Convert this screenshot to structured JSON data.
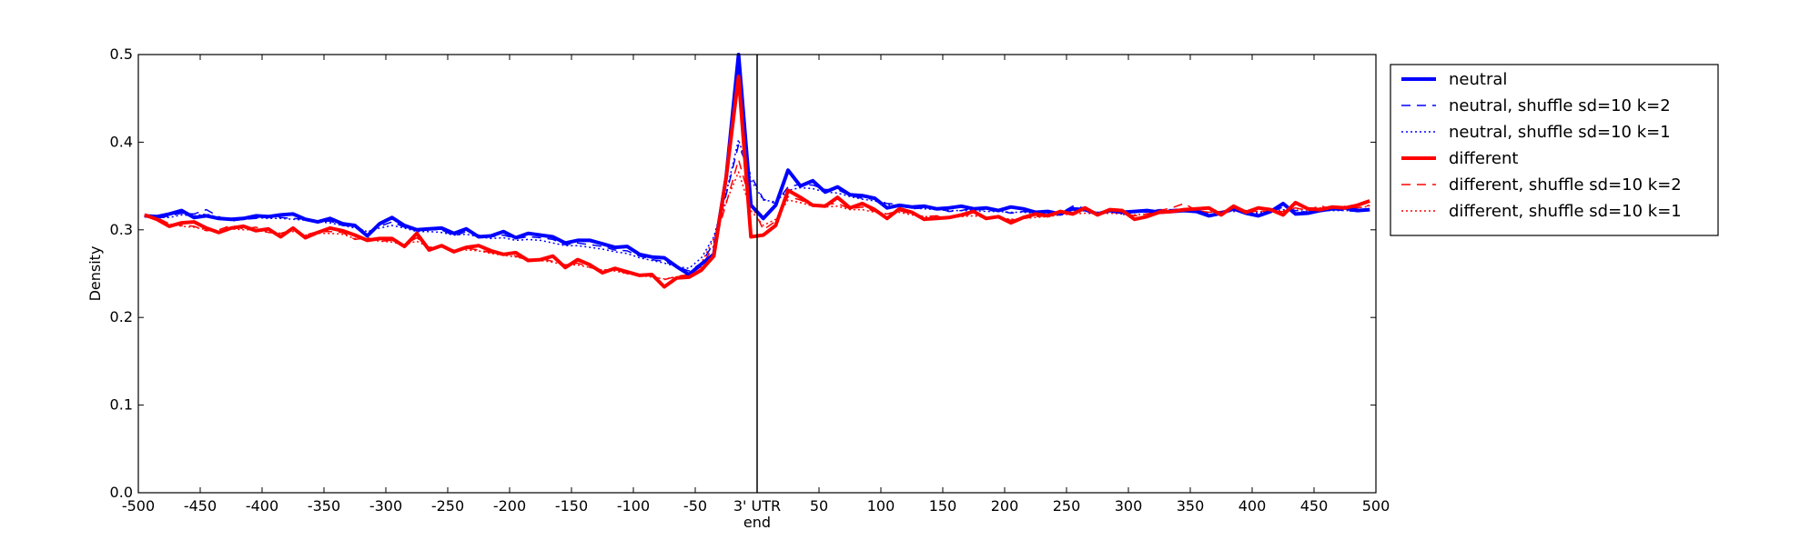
{
  "chart_data": {
    "type": "line",
    "title": "",
    "xlabel": "end",
    "ylabel": "Density",
    "xlim": [
      -500,
      500
    ],
    "ylim": [
      0,
      0.5
    ],
    "grid": false,
    "legend_position": "outside-top-right",
    "vline_x": 0,
    "x_ticks": [
      -500,
      -450,
      -400,
      -350,
      -300,
      -250,
      -200,
      -150,
      -100,
      -50,
      0,
      50,
      100,
      150,
      200,
      250,
      300,
      350,
      400,
      450,
      500
    ],
    "x_tick_labels": [
      "-500",
      "-450",
      "-400",
      "-350",
      "-300",
      "-250",
      "-200",
      "-150",
      "-100",
      "-50",
      "3' UTR",
      "50",
      "100",
      "150",
      "200",
      "250",
      "300",
      "350",
      "400",
      "450",
      "500"
    ],
    "y_ticks": [
      0.0,
      0.1,
      0.2,
      0.3,
      0.4,
      0.5
    ],
    "y_tick_labels": [
      "0.0",
      "0.1",
      "0.2",
      "0.3",
      "0.4",
      "0.5"
    ],
    "x": [
      -495,
      -485,
      -475,
      -465,
      -455,
      -445,
      -435,
      -425,
      -415,
      -405,
      -395,
      -385,
      -375,
      -365,
      -355,
      -345,
      -335,
      -325,
      -315,
      -305,
      -295,
      -285,
      -275,
      -265,
      -255,
      -245,
      -235,
      -225,
      -215,
      -205,
      -195,
      -185,
      -175,
      -165,
      -155,
      -145,
      -135,
      -125,
      -115,
      -105,
      -95,
      -85,
      -75,
      -65,
      -55,
      -45,
      -35,
      -25,
      -15,
      -5,
      5,
      15,
      25,
      35,
      45,
      55,
      65,
      75,
      85,
      95,
      105,
      115,
      125,
      135,
      145,
      155,
      165,
      175,
      185,
      195,
      205,
      215,
      225,
      235,
      245,
      255,
      265,
      275,
      285,
      295,
      305,
      315,
      325,
      335,
      345,
      355,
      365,
      375,
      385,
      395,
      405,
      415,
      425,
      435,
      445,
      455,
      465,
      475,
      485,
      495
    ],
    "series": [
      {
        "name": "neutral",
        "color": "#0000ff",
        "style": "solid",
        "values": [
          0.316,
          0.315,
          0.318,
          0.322,
          0.314,
          0.316,
          0.313,
          0.312,
          0.313,
          0.316,
          0.315,
          0.317,
          0.318,
          0.312,
          0.309,
          0.313,
          0.307,
          0.305,
          0.293,
          0.307,
          0.314,
          0.305,
          0.3,
          0.301,
          0.302,
          0.296,
          0.301,
          0.292,
          0.293,
          0.298,
          0.291,
          0.296,
          0.294,
          0.292,
          0.285,
          0.288,
          0.288,
          0.284,
          0.28,
          0.281,
          0.272,
          0.269,
          0.268,
          0.258,
          0.249,
          0.261,
          0.272,
          0.36,
          0.5,
          0.328,
          0.313,
          0.328,
          0.368,
          0.35,
          0.356,
          0.343,
          0.349,
          0.34,
          0.339,
          0.336,
          0.325,
          0.328,
          0.326,
          0.327,
          0.324,
          0.325,
          0.327,
          0.324,
          0.325,
          0.322,
          0.326,
          0.324,
          0.32,
          0.321,
          0.318,
          0.324,
          0.323,
          0.318,
          0.322,
          0.32,
          0.321,
          0.322,
          0.32,
          0.321,
          0.322,
          0.321,
          0.316,
          0.319,
          0.324,
          0.319,
          0.316,
          0.321,
          0.33,
          0.318,
          0.319,
          0.322,
          0.324,
          0.325,
          0.322,
          0.323
        ]
      },
      {
        "name": "neutral, shuffle sd=10 k=2",
        "color": "#0000ff",
        "style": "dashed",
        "values": [
          0.317,
          0.313,
          0.316,
          0.319,
          0.318,
          0.323,
          0.315,
          0.31,
          0.312,
          0.313,
          0.316,
          0.314,
          0.313,
          0.312,
          0.31,
          0.31,
          0.305,
          0.304,
          0.297,
          0.304,
          0.309,
          0.303,
          0.299,
          0.3,
          0.3,
          0.293,
          0.298,
          0.294,
          0.292,
          0.294,
          0.29,
          0.292,
          0.291,
          0.289,
          0.283,
          0.285,
          0.283,
          0.281,
          0.277,
          0.276,
          0.27,
          0.266,
          0.264,
          0.258,
          0.253,
          0.262,
          0.285,
          0.34,
          0.397,
          0.362,
          0.335,
          0.33,
          0.349,
          0.352,
          0.351,
          0.346,
          0.346,
          0.339,
          0.336,
          0.335,
          0.33,
          0.329,
          0.324,
          0.325,
          0.325,
          0.321,
          0.322,
          0.325,
          0.322,
          0.322,
          0.319,
          0.321,
          0.32,
          0.318,
          0.319,
          0.327,
          0.325,
          0.318,
          0.323,
          0.317,
          0.321,
          0.32,
          0.323,
          0.323,
          0.324,
          0.323,
          0.318,
          0.32,
          0.323,
          0.322,
          0.315,
          0.32,
          0.326,
          0.322,
          0.32,
          0.322,
          0.323,
          0.322,
          0.321,
          0.322
        ]
      },
      {
        "name": "neutral, shuffle sd=10 k=1",
        "color": "#0000ff",
        "style": "dotted",
        "values": [
          0.315,
          0.314,
          0.314,
          0.317,
          0.316,
          0.318,
          0.314,
          0.311,
          0.312,
          0.314,
          0.313,
          0.313,
          0.312,
          0.311,
          0.309,
          0.308,
          0.305,
          0.302,
          0.298,
          0.302,
          0.305,
          0.302,
          0.298,
          0.298,
          0.297,
          0.294,
          0.295,
          0.292,
          0.29,
          0.291,
          0.288,
          0.289,
          0.288,
          0.285,
          0.282,
          0.282,
          0.28,
          0.278,
          0.275,
          0.273,
          0.268,
          0.265,
          0.262,
          0.258,
          0.256,
          0.268,
          0.292,
          0.342,
          0.403,
          0.357,
          0.334,
          0.332,
          0.345,
          0.348,
          0.347,
          0.343,
          0.342,
          0.338,
          0.335,
          0.333,
          0.329,
          0.327,
          0.325,
          0.324,
          0.323,
          0.322,
          0.322,
          0.322,
          0.321,
          0.321,
          0.32,
          0.32,
          0.319,
          0.319,
          0.32,
          0.322,
          0.322,
          0.32,
          0.321,
          0.32,
          0.32,
          0.321,
          0.321,
          0.322,
          0.322,
          0.321,
          0.32,
          0.321,
          0.321,
          0.321,
          0.319,
          0.321,
          0.323,
          0.322,
          0.321,
          0.322,
          0.322,
          0.322,
          0.322,
          0.322
        ]
      },
      {
        "name": "different",
        "color": "#ff0000",
        "style": "solid",
        "values": [
          0.317,
          0.312,
          0.304,
          0.308,
          0.309,
          0.302,
          0.297,
          0.302,
          0.304,
          0.299,
          0.301,
          0.292,
          0.302,
          0.291,
          0.297,
          0.302,
          0.299,
          0.294,
          0.288,
          0.29,
          0.29,
          0.281,
          0.296,
          0.277,
          0.282,
          0.275,
          0.28,
          0.282,
          0.276,
          0.272,
          0.274,
          0.265,
          0.266,
          0.27,
          0.257,
          0.266,
          0.26,
          0.251,
          0.256,
          0.252,
          0.248,
          0.249,
          0.235,
          0.245,
          0.246,
          0.254,
          0.27,
          0.36,
          0.475,
          0.292,
          0.294,
          0.305,
          0.345,
          0.337,
          0.328,
          0.327,
          0.337,
          0.325,
          0.33,
          0.323,
          0.313,
          0.324,
          0.32,
          0.312,
          0.313,
          0.314,
          0.317,
          0.321,
          0.313,
          0.315,
          0.308,
          0.314,
          0.318,
          0.316,
          0.321,
          0.318,
          0.325,
          0.317,
          0.323,
          0.322,
          0.312,
          0.315,
          0.32,
          0.321,
          0.323,
          0.324,
          0.325,
          0.317,
          0.327,
          0.32,
          0.325,
          0.323,
          0.317,
          0.331,
          0.324,
          0.323,
          0.326,
          0.325,
          0.328,
          0.333
        ]
      },
      {
        "name": "different, shuffle sd=10 k=2",
        "color": "#ff0000",
        "style": "dashed",
        "values": [
          0.316,
          0.314,
          0.307,
          0.305,
          0.304,
          0.299,
          0.3,
          0.305,
          0.301,
          0.303,
          0.297,
          0.296,
          0.3,
          0.294,
          0.298,
          0.298,
          0.297,
          0.289,
          0.291,
          0.287,
          0.288,
          0.283,
          0.291,
          0.28,
          0.281,
          0.276,
          0.279,
          0.277,
          0.274,
          0.273,
          0.27,
          0.265,
          0.267,
          0.264,
          0.26,
          0.262,
          0.257,
          0.254,
          0.255,
          0.25,
          0.249,
          0.247,
          0.243,
          0.247,
          0.249,
          0.258,
          0.282,
          0.33,
          0.38,
          0.33,
          0.3,
          0.31,
          0.338,
          0.334,
          0.328,
          0.329,
          0.33,
          0.324,
          0.326,
          0.321,
          0.318,
          0.322,
          0.318,
          0.315,
          0.316,
          0.314,
          0.316,
          0.318,
          0.315,
          0.314,
          0.311,
          0.313,
          0.315,
          0.316,
          0.318,
          0.32,
          0.322,
          0.318,
          0.32,
          0.319,
          0.316,
          0.318,
          0.322,
          0.325,
          0.33,
          0.322,
          0.32,
          0.321,
          0.324,
          0.319,
          0.322,
          0.32,
          0.321,
          0.325,
          0.322,
          0.328,
          0.322,
          0.327,
          0.325,
          0.328
        ]
      },
      {
        "name": "different, shuffle sd=10 k=1",
        "color": "#ff0000",
        "style": "dotted",
        "values": [
          0.315,
          0.313,
          0.307,
          0.304,
          0.303,
          0.3,
          0.298,
          0.301,
          0.3,
          0.3,
          0.297,
          0.296,
          0.298,
          0.294,
          0.296,
          0.296,
          0.295,
          0.29,
          0.289,
          0.287,
          0.286,
          0.283,
          0.287,
          0.28,
          0.28,
          0.277,
          0.277,
          0.276,
          0.273,
          0.271,
          0.269,
          0.266,
          0.265,
          0.263,
          0.26,
          0.26,
          0.257,
          0.254,
          0.253,
          0.25,
          0.248,
          0.246,
          0.244,
          0.246,
          0.25,
          0.262,
          0.29,
          0.332,
          0.366,
          0.322,
          0.305,
          0.312,
          0.334,
          0.331,
          0.327,
          0.326,
          0.327,
          0.323,
          0.323,
          0.32,
          0.318,
          0.32,
          0.317,
          0.315,
          0.315,
          0.314,
          0.315,
          0.316,
          0.314,
          0.314,
          0.312,
          0.313,
          0.314,
          0.315,
          0.317,
          0.318,
          0.319,
          0.318,
          0.319,
          0.318,
          0.317,
          0.318,
          0.32,
          0.322,
          0.324,
          0.322,
          0.32,
          0.321,
          0.322,
          0.32,
          0.321,
          0.321,
          0.322,
          0.324,
          0.323,
          0.325,
          0.324,
          0.325,
          0.325,
          0.327
        ]
      }
    ]
  }
}
